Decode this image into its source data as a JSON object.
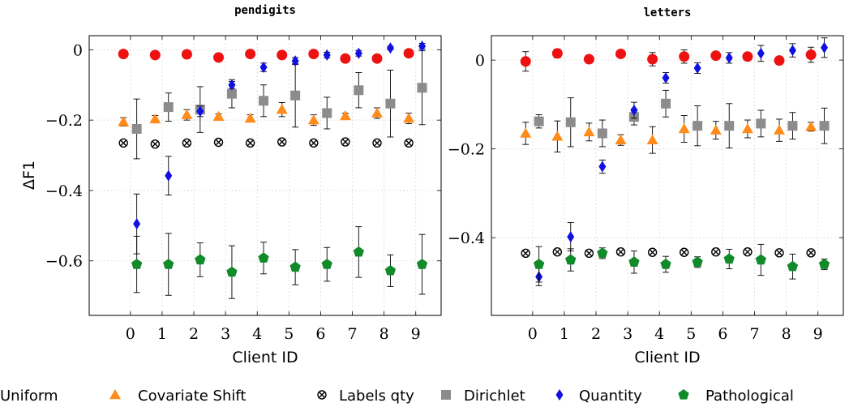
{
  "figure": {
    "legend": [
      {
        "name": "Uniform",
        "color": "#ee1111",
        "marker": "circle"
      },
      {
        "name": "Covariate Shift",
        "color": "#ff8c1a",
        "marker": "triangle"
      },
      {
        "name": "Labels qty",
        "color": "#000000",
        "marker": "otimes"
      },
      {
        "name": "Dirichlet",
        "color": "#8c8c8c",
        "marker": "square"
      },
      {
        "name": "Quantity",
        "color": "#1010e0",
        "marker": "diamond"
      },
      {
        "name": "Pathological",
        "color": "#118a2a",
        "marker": "pentagon"
      }
    ]
  },
  "chart_data": [
    {
      "type": "scatter",
      "title": "pendigits",
      "xlabel": "Client ID",
      "ylabel": "ΔF1",
      "grid": true,
      "legend": "bottom",
      "xlim": [
        -1.3,
        9.8
      ],
      "ylim": [
        -0.755,
        0.04
      ],
      "x_ticks": [
        0,
        1,
        2,
        3,
        4,
        5,
        6,
        7,
        8,
        9
      ],
      "x_tick_labels": [
        "0",
        "1",
        "2",
        "3",
        "4",
        "5",
        "6",
        "7",
        "8",
        "9"
      ],
      "y_ticks": [
        0,
        -0.2,
        -0.4,
        -0.6
      ],
      "y_tick_labels": [
        "0",
        "−0.2",
        "−0.4",
        "−0.6"
      ],
      "x": [
        0,
        1,
        2,
        3,
        4,
        5,
        6,
        7,
        8,
        9
      ],
      "series": [
        {
          "name": "Uniform",
          "values": [
            -0.012,
            -0.015,
            -0.013,
            -0.022,
            -0.012,
            -0.015,
            -0.012,
            -0.025,
            -0.025,
            -0.01
          ],
          "errors": [
            0,
            0,
            0,
            0,
            0,
            0,
            0,
            0,
            0,
            0
          ]
        },
        {
          "name": "Covariate Shift",
          "values": [
            -0.205,
            -0.197,
            -0.185,
            -0.19,
            -0.195,
            -0.17,
            -0.2,
            -0.188,
            -0.18,
            -0.195
          ],
          "errors": [
            0.012,
            0.01,
            0.015,
            0.008,
            0.01,
            0.02,
            0.015,
            0.008,
            0.015,
            0.015
          ]
        },
        {
          "name": "Labels qty",
          "values": [
            -0.265,
            -0.268,
            -0.265,
            -0.263,
            -0.265,
            -0.262,
            -0.265,
            -0.262,
            -0.265,
            -0.265
          ],
          "errors": [
            0,
            0,
            0,
            0,
            0,
            0,
            0,
            0,
            0,
            0
          ]
        },
        {
          "name": "Dirichlet",
          "values": [
            -0.225,
            -0.163,
            -0.17,
            -0.125,
            -0.145,
            -0.13,
            -0.18,
            -0.115,
            -0.153,
            -0.108
          ],
          "errors": [
            0.085,
            0.04,
            0.065,
            0.04,
            0.045,
            0.09,
            0.045,
            0.05,
            0.095,
            0.105
          ]
        },
        {
          "name": "Quantity",
          "values": [
            -0.495,
            -0.358,
            -0.175,
            -0.1,
            -0.05,
            -0.032,
            -0.015,
            -0.01,
            0.005,
            0.01
          ],
          "errors": [
            0.085,
            0.055,
            0.015,
            0.01,
            0.012,
            0.01,
            0.008,
            0.008,
            0.005,
            0.008
          ]
        },
        {
          "name": "Pathological",
          "values": [
            -0.61,
            -0.61,
            -0.597,
            -0.632,
            -0.592,
            -0.618,
            -0.61,
            -0.575,
            -0.628,
            -0.61
          ],
          "errors": [
            0.08,
            0.088,
            0.048,
            0.075,
            0.045,
            0.05,
            0.048,
            0.072,
            0.045,
            0.085
          ]
        }
      ]
    },
    {
      "type": "scatter",
      "title": "letters",
      "xlabel": "Client ID",
      "ylabel": "",
      "grid": true,
      "legend": "bottom",
      "xlim": [
        -1.3,
        9.8
      ],
      "ylim": [
        -0.575,
        0.055
      ],
      "x_ticks": [
        0,
        1,
        2,
        3,
        4,
        5,
        6,
        7,
        8,
        9
      ],
      "x_tick_labels": [
        "0",
        "1",
        "2",
        "3",
        "4",
        "5",
        "6",
        "7",
        "8",
        "9"
      ],
      "y_ticks": [
        0,
        -0.2,
        -0.4
      ],
      "y_tick_labels": [
        "0",
        "−0.2",
        "−0.4"
      ],
      "x": [
        0,
        1,
        2,
        3,
        4,
        5,
        6,
        7,
        8,
        9
      ],
      "series": [
        {
          "name": "Uniform",
          "values": [
            -0.003,
            0.015,
            0.002,
            0.014,
            0.002,
            0.008,
            0.01,
            0.008,
            -0.001,
            0.012
          ],
          "errors": [
            0.022,
            0.01,
            0.008,
            0.005,
            0.015,
            0.015,
            0.005,
            0.005,
            0.007,
            0.017
          ]
        },
        {
          "name": "Covariate Shift",
          "values": [
            -0.165,
            -0.172,
            -0.162,
            -0.18,
            -0.18,
            -0.155,
            -0.158,
            -0.155,
            -0.158,
            -0.15
          ],
          "errors": [
            0.025,
            0.035,
            0.02,
            0.012,
            0.03,
            0.03,
            0.02,
            0.02,
            0.025,
            0.01
          ]
        },
        {
          "name": "Labels qty",
          "values": [
            -0.435,
            -0.432,
            -0.435,
            -0.432,
            -0.433,
            -0.433,
            -0.432,
            -0.432,
            -0.434,
            -0.434
          ],
          "errors": [
            0,
            0,
            0,
            0,
            0,
            0,
            0,
            0,
            0,
            0
          ]
        },
        {
          "name": "Dirichlet",
          "values": [
            -0.138,
            -0.14,
            -0.165,
            -0.128,
            -0.098,
            -0.148,
            -0.148,
            -0.143,
            -0.148,
            -0.148
          ],
          "errors": [
            0.015,
            0.055,
            0.03,
            0.018,
            0.03,
            0.045,
            0.05,
            0.03,
            0.03,
            0.04
          ]
        },
        {
          "name": "Quantity",
          "values": [
            -0.488,
            -0.398,
            -0.24,
            -0.113,
            -0.04,
            -0.018,
            0.005,
            0.015,
            0.022,
            0.028
          ],
          "errors": [
            0.02,
            0.032,
            0.015,
            0.018,
            0.012,
            0.012,
            0.012,
            0.018,
            0.015,
            0.022
          ]
        },
        {
          "name": "Pathological",
          "values": [
            -0.46,
            -0.45,
            -0.435,
            -0.455,
            -0.46,
            -0.455,
            -0.448,
            -0.45,
            -0.465,
            -0.46
          ],
          "errors": [
            0.04,
            0.025,
            0.012,
            0.025,
            0.018,
            0.012,
            0.022,
            0.035,
            0.028,
            0.012
          ]
        }
      ]
    }
  ]
}
